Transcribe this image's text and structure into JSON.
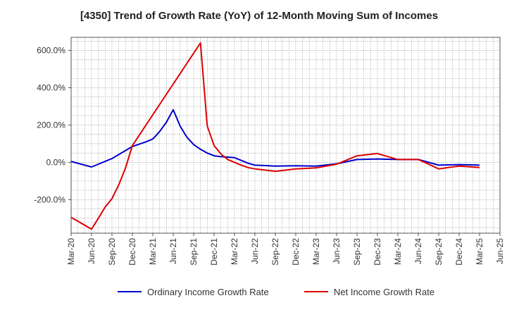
{
  "chart_data": {
    "type": "line",
    "title": "[4350]  Trend of Growth Rate (YoY) of 12-Month Moving Sum of Incomes",
    "xlabel": "",
    "ylabel": "",
    "x_tick_labels": [
      "Mar-20",
      "Jun-20",
      "Sep-20",
      "Dec-20",
      "Mar-21",
      "Jun-21",
      "Sep-21",
      "Dec-21",
      "Mar-22",
      "Jun-22",
      "Sep-22",
      "Dec-22",
      "Mar-23",
      "Jun-23",
      "Sep-23",
      "Dec-23",
      "Mar-24",
      "Jun-24",
      "Sep-24",
      "Dec-24",
      "Mar-25",
      "Jun-25"
    ],
    "y_ticks": [
      600,
      400,
      200,
      0,
      -200
    ],
    "y_tick_labels": [
      "600.0%",
      "400.0%",
      "200.0%",
      "0.0%",
      "-200.0%"
    ],
    "ylim": [
      -380,
      670
    ],
    "grid": true,
    "legend_position": "bottom",
    "series": [
      {
        "name": "Ordinary Income Growth Rate",
        "color": "#0000cc",
        "x": [
          "2020-03",
          "2020-06",
          "2020-09",
          "2020-12",
          "2021-02",
          "2021-03",
          "2021-04",
          "2021-05",
          "2021-06",
          "2021-07",
          "2021-08",
          "2021-09",
          "2021-10",
          "2021-11",
          "2021-12",
          "2022-01",
          "2022-02",
          "2022-03",
          "2022-04",
          "2022-05",
          "2022-06",
          "2022-09",
          "2022-12",
          "2023-03",
          "2023-06",
          "2023-09",
          "2023-12",
          "2024-03",
          "2024-06",
          "2024-09",
          "2024-12",
          "2025-03"
        ],
        "values": [
          5,
          -25,
          20,
          85,
          110,
          125,
          165,
          215,
          282,
          195,
          135,
          95,
          70,
          50,
          35,
          30,
          28,
          25,
          10,
          -5,
          -15,
          -20,
          -18,
          -20,
          -8,
          15,
          18,
          15,
          15,
          -15,
          -12,
          -15
        ]
      },
      {
        "name": "Net Income Growth Rate",
        "color": "#dd0000",
        "x": [
          "2020-03",
          "2020-06",
          "2020-07",
          "2020-08",
          "2020-09",
          "2020-10",
          "2020-11",
          "2020-12",
          "2021-10",
          "2021-11",
          "2021-12",
          "2022-01",
          "2022-02",
          "2022-03",
          "2022-04",
          "2022-05",
          "2022-06",
          "2022-09",
          "2022-12",
          "2023-03",
          "2023-06",
          "2023-09",
          "2023-12",
          "2024-03",
          "2024-06",
          "2024-09",
          "2024-12",
          "2025-03"
        ],
        "values": [
          -295,
          -358,
          -300,
          -240,
          -195,
          -120,
          -30,
          90,
          640,
          195,
          90,
          45,
          15,
          0,
          -15,
          -28,
          -35,
          -48,
          -35,
          -30,
          -10,
          35,
          47,
          15,
          15,
          -35,
          -20,
          -28
        ]
      }
    ]
  }
}
